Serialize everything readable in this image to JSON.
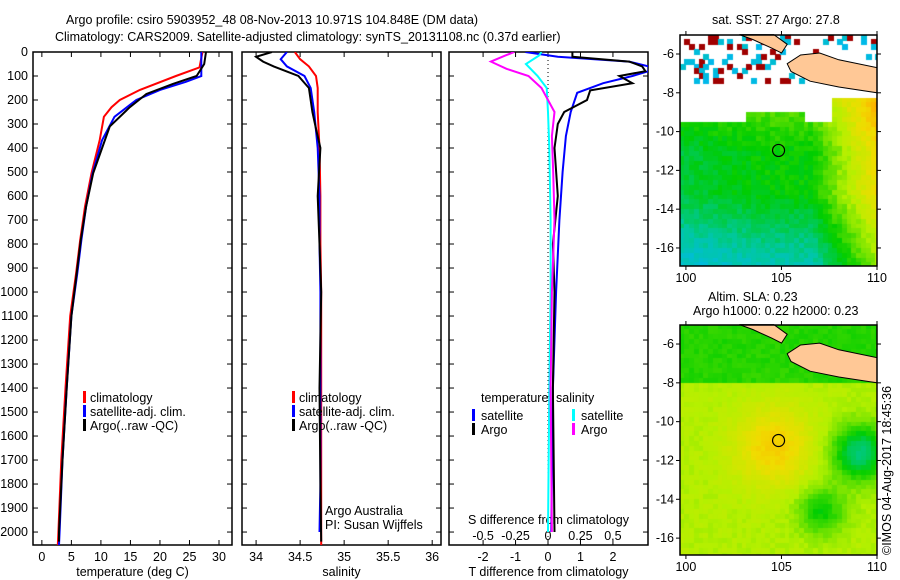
{
  "header": {
    "title_line1": "Argo profile: csiro 5903952_48 08-Nov-2013 10.971S 104.848E (DM data)",
    "title_line2": "Climatology: CARS2009. Satellite-adjusted climatology: synTS_20131108.nc (0.37d earlier)"
  },
  "colors": {
    "climatology": "#ff0000",
    "satellite": "#0000ff",
    "argo": "#000000",
    "sal_satellite": "#00ffff",
    "sal_argo": "#ff00ff"
  },
  "chart_data": [
    {
      "type": "line",
      "id": "temperature",
      "xlabel": "temperature (deg C)",
      "ylabel": "",
      "xlim": [
        -1.5,
        32.2
      ],
      "ylim": [
        2054,
        0
      ],
      "xticks": [
        0,
        5,
        10,
        15,
        20,
        25,
        30
      ],
      "yticks": [
        0,
        100,
        200,
        300,
        400,
        500,
        600,
        700,
        800,
        900,
        1000,
        1100,
        1200,
        1300,
        1400,
        1500,
        1600,
        1700,
        1800,
        1900,
        2000
      ],
      "legend": [
        "climatology",
        "satellite-adj. clim.",
        "Argo(..raw -QC)"
      ],
      "series": [
        {
          "name": "climatology",
          "color": "#ff0000",
          "depth": [
            0,
            64,
            100,
            158,
            200,
            230,
            270,
            367,
            505,
            644,
            783,
            922,
            1100,
            1400,
            1700,
            2000,
            2054
          ],
          "values": [
            27.2,
            26.7,
            22.7,
            16.6,
            13.2,
            11.8,
            10.5,
            9.8,
            8.4,
            7.3,
            6.5,
            5.8,
            4.8,
            4.0,
            3.3,
            2.8,
            2.7
          ]
        },
        {
          "name": "satellite-adj. clim.",
          "color": "#0000ff",
          "depth": [
            0,
            100,
            124,
            158,
            200,
            270,
            367,
            505,
            644,
            783,
            922,
            1100,
            1400,
            1700,
            2000,
            2054
          ],
          "values": [
            27.0,
            27.0,
            24.4,
            20.0,
            16.0,
            12.3,
            10.2,
            8.6,
            7.5,
            6.7,
            6.0,
            5.0,
            4.2,
            3.5,
            3.0,
            2.9
          ]
        },
        {
          "name": "Argo(..raw -QC)",
          "color": "#000000",
          "depth": [
            0,
            50,
            100,
            133,
            175,
            230,
            310,
            400,
            505,
            644,
            783,
            922,
            1100,
            1400,
            1700,
            2000,
            2040
          ],
          "values": [
            27.8,
            27.5,
            26.2,
            22.2,
            17.7,
            14.9,
            11.5,
            10.2,
            8.7,
            7.5,
            6.6,
            5.9,
            5.0,
            4.2,
            3.5,
            2.9,
            2.9
          ]
        }
      ]
    },
    {
      "type": "line",
      "id": "salinity",
      "xlabel": "salinity",
      "xlim": [
        33.84,
        36.1
      ],
      "ylim": [
        2054,
        0
      ],
      "xticks": [
        34,
        34.5,
        35,
        35.5,
        36
      ],
      "legend": [
        "climatology",
        "satellite-adj. clim.",
        "Argo(..raw -QC)"
      ],
      "series": [
        {
          "name": "climatology",
          "color": "#ff0000",
          "depth": [
            0,
            30,
            60,
            100,
            150,
            250,
            400,
            600,
            800,
            1000,
            1400,
            1800,
            2054
          ],
          "values": [
            34.44,
            34.5,
            34.6,
            34.68,
            34.7,
            34.7,
            34.72,
            34.73,
            34.73,
            34.74,
            34.74,
            34.74,
            34.74
          ]
        },
        {
          "name": "satellite-adj. clim.",
          "color": "#0000ff",
          "depth": [
            0,
            30,
            60,
            100,
            150,
            250,
            400,
            600,
            800,
            1000,
            1400,
            1800,
            2000
          ],
          "values": [
            34.35,
            34.28,
            34.35,
            34.55,
            34.62,
            34.66,
            34.7,
            34.72,
            34.72,
            34.73,
            34.73,
            34.73,
            34.72
          ]
        },
        {
          "name": "Argo(..raw -QC)",
          "color": "#000000",
          "depth": [
            0,
            20,
            40,
            60,
            100,
            150,
            250,
            320,
            400,
            600,
            800,
            1000,
            1400,
            1800,
            2040
          ],
          "values": [
            34.18,
            34.0,
            34.08,
            34.2,
            34.48,
            34.6,
            34.64,
            34.68,
            34.73,
            34.7,
            34.72,
            34.74,
            34.72,
            34.73,
            34.74
          ]
        }
      ],
      "annotations": [
        "Argo Australia",
        "PI: Susan Wijffels"
      ]
    },
    {
      "type": "line",
      "id": "difference",
      "xlabel": "T difference from climatology",
      "xlabel_top": "S difference from climatology",
      "xlim": [
        -3.05,
        3.08
      ],
      "ylim": [
        2054,
        0
      ],
      "xticks": [
        -2,
        -1,
        0,
        1,
        2
      ],
      "xticks_s": [
        -0.5,
        -0.25,
        0,
        0.25,
        0.5
      ],
      "legend_temperature": {
        "title": "temperature",
        "items": [
          "satellite",
          "Argo"
        ]
      },
      "legend_salinity": {
        "title": "salinity",
        "items": [
          "satellite",
          "Argo"
        ]
      },
      "series": [
        {
          "name": "T satellite",
          "color": "#0000ff",
          "scale": "T",
          "depth": [
            0,
            20,
            40,
            60,
            80,
            100,
            130,
            170,
            250,
            350,
            500,
            700,
            1000,
            1400,
            2000
          ],
          "values": [
            -0.7,
            0.3,
            2.5,
            3.1,
            3.1,
            2.6,
            1.7,
            0.9,
            0.7,
            0.55,
            0.45,
            0.35,
            0.25,
            0.15,
            0.1
          ]
        },
        {
          "name": "T Argo",
          "color": "#000000",
          "scale": "T",
          "depth": [
            0,
            20,
            40,
            60,
            80,
            100,
            130,
            160,
            200,
            250,
            300,
            400,
            600,
            800,
            1000,
            1400,
            2000
          ],
          "values": [
            0.75,
            0.75,
            2.5,
            2.9,
            3.0,
            2.2,
            2.6,
            1.3,
            1.2,
            0.5,
            0.3,
            0.2,
            0.3,
            0.15,
            0.2,
            0.15,
            0.2
          ]
        },
        {
          "name": "S satellite",
          "color": "#00ffff",
          "scale": "S",
          "depth": [
            0,
            15,
            50,
            100,
            150,
            250,
            400,
            700,
            1000,
            1400,
            2000
          ],
          "values": [
            -0.05,
            -0.07,
            -0.17,
            -0.08,
            -0.01,
            0.0,
            0.01,
            0.02,
            0.02,
            0.01,
            0.0
          ]
        },
        {
          "name": "S Argo",
          "color": "#ff00ff",
          "scale": "S",
          "depth": [
            0,
            15,
            40,
            70,
            100,
            150,
            200,
            250,
            350,
            500,
            700,
            1000,
            1400,
            2000
          ],
          "values": [
            -0.26,
            -0.33,
            -0.44,
            -0.32,
            -0.15,
            -0.05,
            0.0,
            0.05,
            0.03,
            0.04,
            0.05,
            0.03,
            0.02,
            0.03
          ]
        }
      ]
    }
  ],
  "maps": [
    {
      "id": "sst",
      "title": "sat. SST: 27 Argo: 27.8",
      "lon_ticks": [
        100,
        105,
        110
      ],
      "lat_ticks": [
        -6,
        -8,
        -10,
        -12,
        -14,
        -16
      ],
      "argo_position": {
        "lon": 104.848,
        "lat": -10.971
      }
    },
    {
      "id": "sla",
      "title_line1": "Altim. SLA: 0.23",
      "title_line2": "Argo h1000: 0.22 h2000: 0.23",
      "lon_ticks": [
        100,
        105,
        110
      ],
      "lat_ticks": [
        -6,
        -8,
        -10,
        -12,
        -14,
        -16
      ],
      "argo_position": {
        "lon": 104.848,
        "lat": -10.971
      }
    }
  ],
  "footer": {
    "credit": "©IMOS 04-Aug-2017 18:45:36"
  }
}
